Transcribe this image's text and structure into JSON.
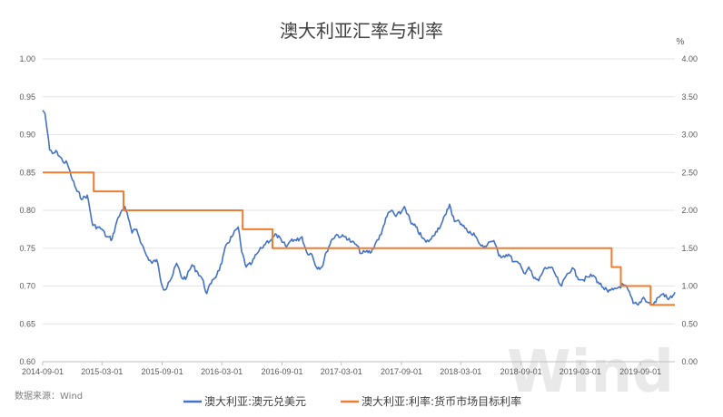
{
  "chart_data": {
    "type": "line",
    "title": "澳大利亚汇率与利率",
    "y2_unit": "%",
    "source": "数据来源：Wind",
    "watermark": "Wind",
    "ylim": [
      0.6,
      1.0
    ],
    "y2lim": [
      0.0,
      4.0
    ],
    "y_ticks": [
      "0.60",
      "0.65",
      "0.70",
      "0.75",
      "0.80",
      "0.85",
      "0.90",
      "0.95",
      "1.00"
    ],
    "y2_ticks": [
      "0.00",
      "0.50",
      "1.00",
      "1.50",
      "2.00",
      "2.50",
      "3.00",
      "3.50",
      "4.00"
    ],
    "x_ticks": [
      "2014-09-01",
      "2015-03-01",
      "2015-09-01",
      "2016-03-01",
      "2016-09-01",
      "2017-03-01",
      "2017-09-01",
      "2018-03-01",
      "2018-09-01",
      "2019-03-01",
      "2019-09-01"
    ],
    "x_range": [
      "2014-09-01",
      "2019-12-15"
    ],
    "grid": "horizontal",
    "legend_position": "bottom",
    "series": [
      {
        "name": "澳大利亚:澳元兑美元",
        "axis": "left",
        "color": "#4472c4",
        "points": [
          [
            "2014-09-01",
            0.932
          ],
          [
            "2014-09-08",
            0.928
          ],
          [
            "2014-09-15",
            0.905
          ],
          [
            "2014-09-22",
            0.88
          ],
          [
            "2014-10-01",
            0.875
          ],
          [
            "2014-10-15",
            0.877
          ],
          [
            "2014-11-01",
            0.865
          ],
          [
            "2014-11-15",
            0.862
          ],
          [
            "2014-12-01",
            0.84
          ],
          [
            "2014-12-15",
            0.825
          ],
          [
            "2015-01-01",
            0.815
          ],
          [
            "2015-01-15",
            0.82
          ],
          [
            "2015-02-01",
            0.78
          ],
          [
            "2015-02-15",
            0.778
          ],
          [
            "2015-03-01",
            0.775
          ],
          [
            "2015-03-15",
            0.765
          ],
          [
            "2015-04-01",
            0.762
          ],
          [
            "2015-04-15",
            0.785
          ],
          [
            "2015-05-01",
            0.8
          ],
          [
            "2015-05-10",
            0.805
          ],
          [
            "2015-05-20",
            0.79
          ],
          [
            "2015-06-01",
            0.77
          ],
          [
            "2015-06-15",
            0.775
          ],
          [
            "2015-07-01",
            0.755
          ],
          [
            "2015-07-15",
            0.74
          ],
          [
            "2015-08-01",
            0.73
          ],
          [
            "2015-08-15",
            0.735
          ],
          [
            "2015-09-01",
            0.7
          ],
          [
            "2015-09-10",
            0.695
          ],
          [
            "2015-09-20",
            0.705
          ],
          [
            "2015-10-01",
            0.712
          ],
          [
            "2015-10-15",
            0.73
          ],
          [
            "2015-11-01",
            0.71
          ],
          [
            "2015-11-15",
            0.712
          ],
          [
            "2015-12-01",
            0.728
          ],
          [
            "2015-12-15",
            0.72
          ],
          [
            "2016-01-01",
            0.71
          ],
          [
            "2016-01-15",
            0.69
          ],
          [
            "2016-02-01",
            0.708
          ],
          [
            "2016-02-15",
            0.715
          ],
          [
            "2016-03-01",
            0.73
          ],
          [
            "2016-03-15",
            0.755
          ],
          [
            "2016-04-01",
            0.765
          ],
          [
            "2016-04-20",
            0.778
          ],
          [
            "2016-05-01",
            0.745
          ],
          [
            "2016-05-15",
            0.725
          ],
          [
            "2016-06-01",
            0.73
          ],
          [
            "2016-06-15",
            0.742
          ],
          [
            "2016-07-01",
            0.75
          ],
          [
            "2016-07-15",
            0.758
          ],
          [
            "2016-08-01",
            0.762
          ],
          [
            "2016-08-15",
            0.768
          ],
          [
            "2016-09-01",
            0.758
          ],
          [
            "2016-09-15",
            0.752
          ],
          [
            "2016-10-01",
            0.762
          ],
          [
            "2016-10-15",
            0.76
          ],
          [
            "2016-11-01",
            0.765
          ],
          [
            "2016-11-15",
            0.745
          ],
          [
            "2016-12-01",
            0.742
          ],
          [
            "2016-12-15",
            0.725
          ],
          [
            "2017-01-01",
            0.725
          ],
          [
            "2017-01-15",
            0.745
          ],
          [
            "2017-02-01",
            0.762
          ],
          [
            "2017-02-15",
            0.768
          ],
          [
            "2017-03-01",
            0.765
          ],
          [
            "2017-03-15",
            0.765
          ],
          [
            "2017-04-01",
            0.758
          ],
          [
            "2017-04-15",
            0.755
          ],
          [
            "2017-05-01",
            0.743
          ],
          [
            "2017-05-15",
            0.745
          ],
          [
            "2017-06-01",
            0.745
          ],
          [
            "2017-06-15",
            0.758
          ],
          [
            "2017-07-01",
            0.768
          ],
          [
            "2017-07-15",
            0.79
          ],
          [
            "2017-08-01",
            0.8
          ],
          [
            "2017-08-15",
            0.792
          ],
          [
            "2017-09-01",
            0.798
          ],
          [
            "2017-09-10",
            0.805
          ],
          [
            "2017-09-20",
            0.795
          ],
          [
            "2017-10-01",
            0.782
          ],
          [
            "2017-10-15",
            0.778
          ],
          [
            "2017-11-01",
            0.765
          ],
          [
            "2017-11-15",
            0.758
          ],
          [
            "2017-12-01",
            0.762
          ],
          [
            "2017-12-15",
            0.772
          ],
          [
            "2018-01-01",
            0.782
          ],
          [
            "2018-01-15",
            0.795
          ],
          [
            "2018-01-26",
            0.808
          ],
          [
            "2018-02-10",
            0.785
          ],
          [
            "2018-02-25",
            0.785
          ],
          [
            "2018-03-10",
            0.78
          ],
          [
            "2018-03-25",
            0.77
          ],
          [
            "2018-04-10",
            0.77
          ],
          [
            "2018-04-25",
            0.757
          ],
          [
            "2018-05-10",
            0.75
          ],
          [
            "2018-05-25",
            0.758
          ],
          [
            "2018-06-10",
            0.76
          ],
          [
            "2018-06-25",
            0.74
          ],
          [
            "2018-07-10",
            0.74
          ],
          [
            "2018-07-25",
            0.742
          ],
          [
            "2018-08-10",
            0.732
          ],
          [
            "2018-08-25",
            0.73
          ],
          [
            "2018-09-10",
            0.717
          ],
          [
            "2018-09-25",
            0.725
          ],
          [
            "2018-10-10",
            0.71
          ],
          [
            "2018-10-25",
            0.707
          ],
          [
            "2018-11-10",
            0.722
          ],
          [
            "2018-11-25",
            0.725
          ],
          [
            "2018-12-10",
            0.72
          ],
          [
            "2018-12-25",
            0.705
          ],
          [
            "2019-01-03",
            0.7
          ],
          [
            "2019-01-20",
            0.716
          ],
          [
            "2019-02-05",
            0.724
          ],
          [
            "2019-02-20",
            0.712
          ],
          [
            "2019-03-10",
            0.708
          ],
          [
            "2019-03-25",
            0.712
          ],
          [
            "2019-04-10",
            0.714
          ],
          [
            "2019-04-25",
            0.705
          ],
          [
            "2019-05-10",
            0.698
          ],
          [
            "2019-05-25",
            0.692
          ],
          [
            "2019-06-10",
            0.695
          ],
          [
            "2019-06-25",
            0.698
          ],
          [
            "2019-07-10",
            0.702
          ],
          [
            "2019-07-25",
            0.695
          ],
          [
            "2019-08-10",
            0.677
          ],
          [
            "2019-08-25",
            0.675
          ],
          [
            "2019-09-10",
            0.685
          ],
          [
            "2019-09-25",
            0.678
          ],
          [
            "2019-10-10",
            0.675
          ],
          [
            "2019-10-25",
            0.685
          ],
          [
            "2019-11-10",
            0.69
          ],
          [
            "2019-11-25",
            0.682
          ],
          [
            "2019-12-10",
            0.688
          ],
          [
            "2019-12-15",
            0.692
          ]
        ]
      },
      {
        "name": "澳大利亚:利率:货币市场目标利率",
        "axis": "right",
        "color": "#ed7d31",
        "step": true,
        "points": [
          [
            "2014-09-01",
            2.5
          ],
          [
            "2015-02-04",
            2.25
          ],
          [
            "2015-05-06",
            2.0
          ],
          [
            "2016-05-04",
            1.75
          ],
          [
            "2016-08-03",
            1.5
          ],
          [
            "2019-06-05",
            1.25
          ],
          [
            "2019-07-03",
            1.0
          ],
          [
            "2019-10-02",
            0.75
          ],
          [
            "2019-12-15",
            0.75
          ]
        ]
      }
    ]
  }
}
